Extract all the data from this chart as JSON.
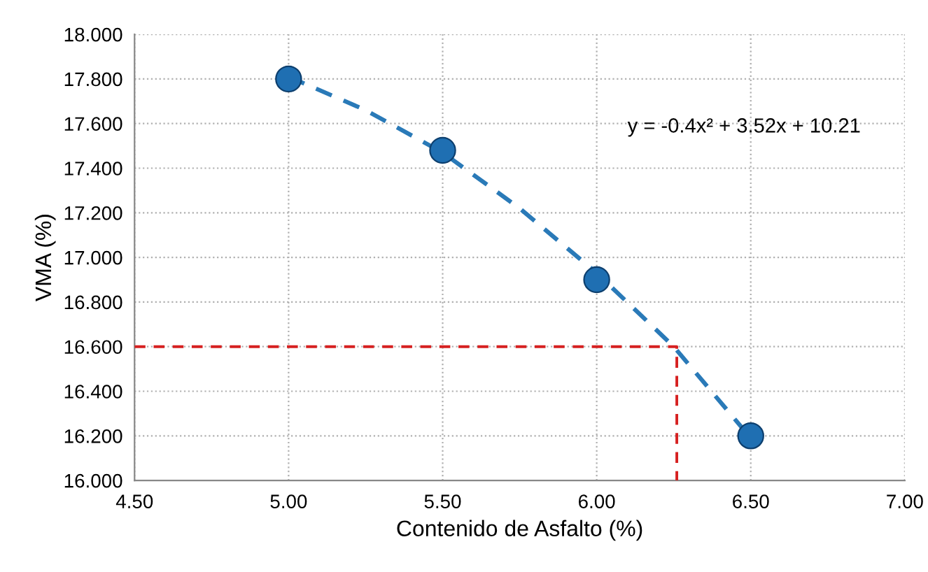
{
  "chart_data": {
    "type": "scatter",
    "xlabel": "Contenido de Asfalto (%)",
    "ylabel": "VMA (%)",
    "series": [
      {
        "color": "#1f6fb2",
        "marker": "circle",
        "x": [
          5.0,
          5.5,
          6.0,
          6.5
        ],
        "values": [
          17.8,
          17.48,
          16.9,
          16.2
        ]
      },
      {
        "type": "line",
        "color": "#2a7ab8",
        "line_style": "dashed",
        "marker": "none",
        "x": [
          5.0,
          5.25,
          5.5,
          5.75,
          6.0,
          6.25,
          6.5
        ],
        "values": [
          17.81,
          17.66,
          17.47,
          17.22,
          16.93,
          16.6,
          16.19
        ]
      },
      {
        "type": "line",
        "color": "#d62020",
        "line_style": "dashed",
        "marker": "none",
        "x": [
          4.5,
          6.26,
          6.26
        ],
        "values": [
          16.6,
          16.6,
          16.0
        ]
      }
    ],
    "annotations": [
      "y = -0.4x² + 3.52x + 10.21"
    ],
    "xlim": [
      4.5,
      7.0
    ],
    "xticks": [
      {
        "value": 4.5,
        "label": "4.50"
      },
      {
        "value": 5.0,
        "label": "5.00"
      },
      {
        "value": 5.5,
        "label": "5.50"
      },
      {
        "value": 6.0,
        "label": "6.00"
      },
      {
        "value": 6.5,
        "label": "6.50"
      },
      {
        "value": 7.0,
        "label": "7.00"
      }
    ],
    "ylim": [
      16.0,
      18.0
    ],
    "yticks": [
      {
        "value": 16.0,
        "label": "16.000"
      },
      {
        "value": 16.2,
        "label": "16.200"
      },
      {
        "value": 16.4,
        "label": "16.400"
      },
      {
        "value": 16.6,
        "label": "16.600"
      },
      {
        "value": 16.8,
        "label": "16.800"
      },
      {
        "value": 17.0,
        "label": "17.000"
      },
      {
        "value": 17.2,
        "label": "17.200"
      },
      {
        "value": 17.4,
        "label": "17.400"
      },
      {
        "value": 17.6,
        "label": "17.600"
      },
      {
        "value": 17.8,
        "label": "17.800"
      },
      {
        "value": 18.0,
        "label": "18.000"
      }
    ],
    "grid": true
  }
}
